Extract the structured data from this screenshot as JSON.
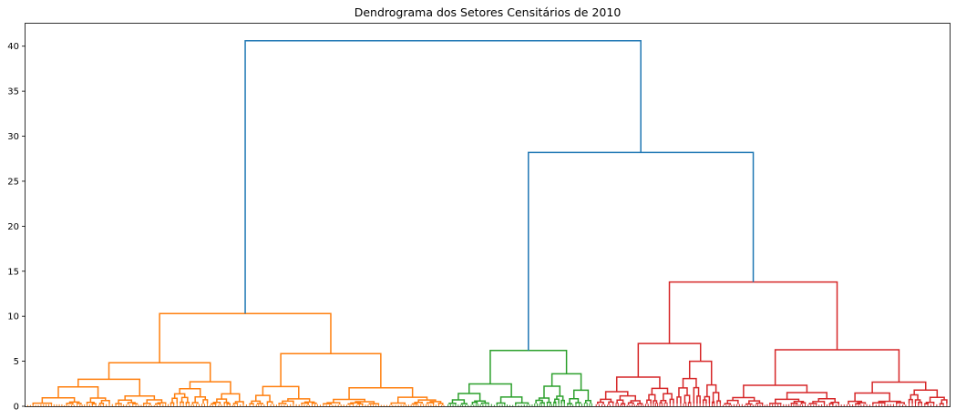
{
  "chart_data": {
    "type": "dendrogram",
    "title": "Dendrograma dos Setores Censitários de 2010",
    "xlabel": "",
    "ylabel": "",
    "ylim": [
      0,
      42.5
    ],
    "yticks": [
      0,
      5,
      10,
      15,
      20,
      25,
      30,
      35,
      40
    ],
    "grid": false,
    "legend": "none",
    "colors": {
      "above_threshold": "#1f77b4",
      "cluster_1": "#ff7f0e",
      "cluster_2": "#2ca02c",
      "cluster_3": "#d62728"
    },
    "clusters": [
      {
        "id": "cluster_1",
        "color": "#ff7f0e",
        "leaf_fraction": 0.455,
        "merge_height": 10.3
      },
      {
        "id": "cluster_2",
        "color": "#2ca02c",
        "leaf_fraction": 0.16,
        "merge_height": 6.2
      },
      {
        "id": "cluster_3",
        "color": "#d62728",
        "leaf_fraction": 0.385,
        "merge_height": 13.8
      }
    ],
    "merges": [
      {
        "left": "cluster_1",
        "right": "cluster_2+cluster_3",
        "height": 40.6,
        "color": "#1f77b4"
      },
      {
        "left": "cluster_2",
        "right": "cluster_3",
        "height": 28.2,
        "color": "#1f77b4"
      }
    ]
  }
}
